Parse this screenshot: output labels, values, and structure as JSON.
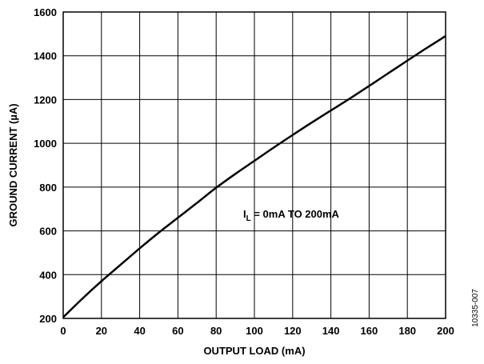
{
  "chart_data": {
    "type": "line",
    "title": "",
    "xlabel": "OUTPUT LOAD (mA)",
    "ylabel": "GROUND CURRENT (µA)",
    "xlim": [
      0,
      200
    ],
    "ylim": [
      200,
      1600
    ],
    "x_ticks": [
      0,
      20,
      40,
      60,
      80,
      100,
      120,
      140,
      160,
      180,
      200
    ],
    "y_ticks": [
      200,
      400,
      600,
      800,
      1000,
      1200,
      1400,
      1600
    ],
    "grid": true,
    "series": [
      {
        "x": [
          0,
          10,
          20,
          30,
          40,
          50,
          60,
          70,
          80,
          90,
          100,
          110,
          120,
          130,
          140,
          150,
          160,
          170,
          180,
          190,
          200
        ],
        "y": [
          205,
          290,
          370,
          445,
          520,
          592,
          660,
          728,
          797,
          860,
          920,
          980,
          1038,
          1095,
          1150,
          1205,
          1262,
          1320,
          1378,
          1435,
          1490
        ]
      }
    ],
    "annotation": {
      "main": "I",
      "subscript": "L",
      "rest": " = 0mA TO 200mA"
    }
  },
  "figure_id": "10335-007",
  "colors": {
    "line": "#000000",
    "grid": "#000000",
    "background": "#ffffff"
  }
}
